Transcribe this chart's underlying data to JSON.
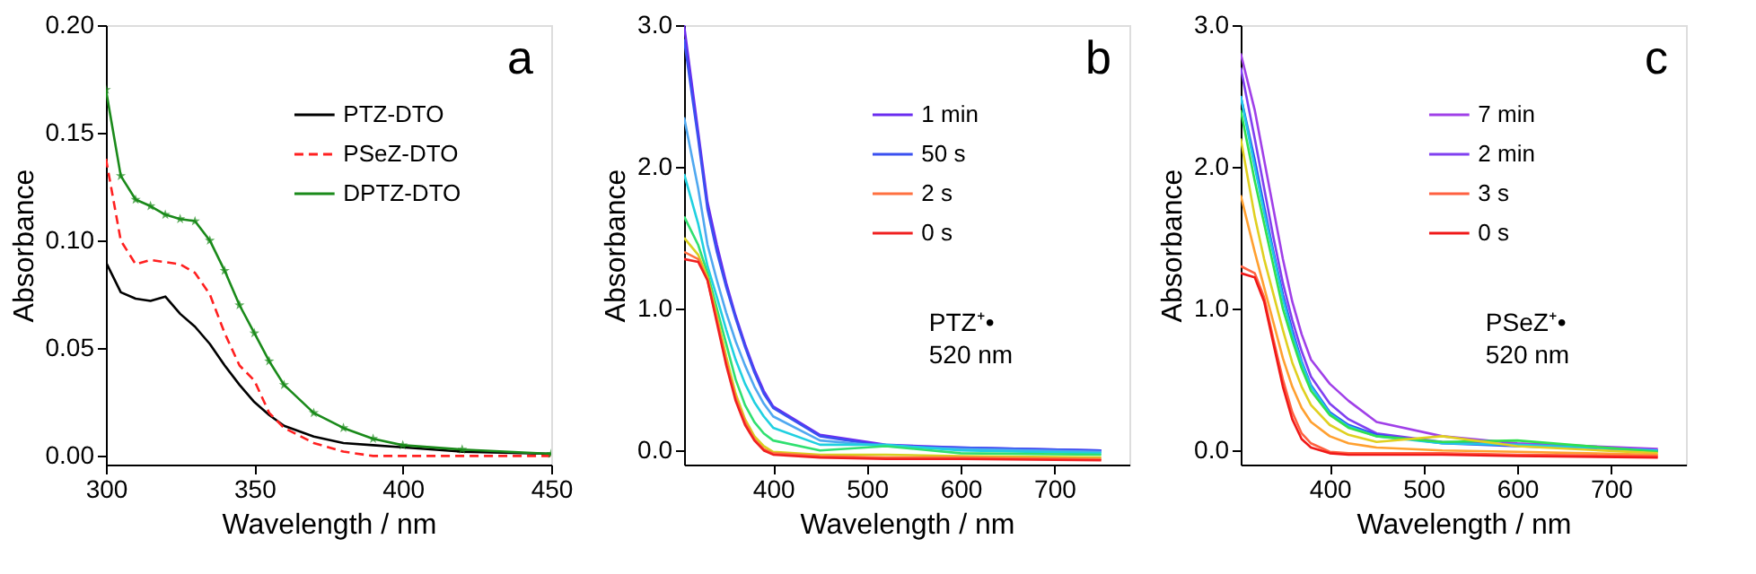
{
  "chart_data": [
    {
      "type": "line",
      "xlabel": "Wavelength / nm",
      "ylabel": "Absorbance",
      "annotations": [
        "a"
      ],
      "legend": "top right",
      "grid": false,
      "xlim": [
        300,
        450
      ],
      "xticks": [
        300,
        350,
        400,
        450
      ],
      "ylim": [
        -0.004,
        0.2
      ],
      "yticks": [
        {
          "value": 0,
          "label": "0.00"
        },
        {
          "value": 0.05,
          "label": "0.05"
        },
        {
          "value": 0.1,
          "label": "0.10"
        },
        {
          "value": 0.15,
          "label": "0.15"
        },
        {
          "value": 0.2,
          "label": "0.20"
        }
      ],
      "x": [
        300,
        305,
        310,
        315,
        320,
        325,
        330,
        335,
        340,
        345,
        350,
        355,
        360,
        370,
        380,
        390,
        400,
        420,
        450
      ],
      "series": [
        {
          "name": "PTZ-DTO",
          "color": "#000000",
          "line_style": "solid",
          "marker": "none",
          "values": [
            0.09,
            0.076,
            0.073,
            0.072,
            0.074,
            0.066,
            0.06,
            0.052,
            0.042,
            0.033,
            0.025,
            0.019,
            0.014,
            0.009,
            0.006,
            0.005,
            0.004,
            0.002,
            0.001
          ]
        },
        {
          "name": "PSeZ-DTO",
          "color": "#ff2020",
          "line_style": "dashed",
          "marker": "none",
          "values": [
            0.138,
            0.1,
            0.089,
            0.091,
            0.09,
            0.089,
            0.085,
            0.075,
            0.057,
            0.042,
            0.035,
            0.02,
            0.013,
            0.006,
            0.002,
            0.0,
            0.0,
            0.0,
            0.0
          ]
        },
        {
          "name": "DPTZ-DTO",
          "color": "#1a8a1a",
          "line_style": "solid",
          "marker": "star",
          "values": [
            0.17,
            0.13,
            0.119,
            0.116,
            0.112,
            0.11,
            0.109,
            0.1,
            0.086,
            0.07,
            0.057,
            0.044,
            0.033,
            0.02,
            0.013,
            0.008,
            0.005,
            0.003,
            0.001
          ]
        }
      ]
    },
    {
      "type": "line",
      "xlabel": "Wavelength / nm",
      "ylabel": "Absorbance",
      "annotations": [
        "b",
        "PTZ⁺•",
        "520 nm"
      ],
      "legend": "top right",
      "grid": false,
      "xlim": [
        305,
        780
      ],
      "xticks": [
        400,
        500,
        600,
        700
      ],
      "ylim": [
        -0.1,
        3.0
      ],
      "yticks": [
        {
          "value": 0,
          "label": "0.0"
        },
        {
          "value": 1,
          "label": "1.0"
        },
        {
          "value": 2,
          "label": "2.0"
        },
        {
          "value": 3,
          "label": "3.0"
        }
      ],
      "x": [
        305,
        320,
        330,
        340,
        350,
        360,
        370,
        380,
        390,
        400,
        450,
        520,
        600,
        750
      ],
      "series": [
        {
          "name": "1 min",
          "color": "#6a2cf0",
          "values": [
            3.0,
            2.25,
            1.75,
            1.45,
            1.18,
            0.95,
            0.75,
            0.57,
            0.42,
            0.31,
            0.11,
            0.04,
            0.02,
            0.0
          ]
        },
        {
          "name": "50 s",
          "color": "#3a50f0",
          "values": [
            2.9,
            2.2,
            1.7,
            1.4,
            1.15,
            0.93,
            0.73,
            0.55,
            0.4,
            0.3,
            0.1,
            0.03,
            0.02,
            0.0
          ]
        },
        {
          "color": "#50a8f0",
          "values": [
            2.35,
            1.85,
            1.45,
            1.2,
            0.97,
            0.77,
            0.6,
            0.45,
            0.33,
            0.24,
            0.07,
            0.03,
            0.01,
            -0.01
          ]
        },
        {
          "color": "#20d0e0",
          "values": [
            1.95,
            1.6,
            1.3,
            1.08,
            0.85,
            0.64,
            0.47,
            0.34,
            0.24,
            0.16,
            0.04,
            0.04,
            0.0,
            -0.02
          ]
        },
        {
          "color": "#30e070",
          "values": [
            1.65,
            1.45,
            1.25,
            1.0,
            0.75,
            0.5,
            0.32,
            0.2,
            0.12,
            0.07,
            0.0,
            0.03,
            -0.02,
            -0.03
          ]
        },
        {
          "color": "#d8d020",
          "values": [
            1.5,
            1.38,
            1.22,
            0.95,
            0.66,
            0.4,
            0.22,
            0.1,
            0.03,
            -0.01,
            -0.03,
            -0.03,
            -0.04,
            -0.05
          ]
        },
        {
          "name": "2 s",
          "color": "#ff7040",
          "values": [
            1.4,
            1.35,
            1.2,
            0.92,
            0.62,
            0.37,
            0.2,
            0.08,
            0.01,
            -0.02,
            -0.04,
            -0.05,
            -0.05,
            -0.06
          ]
        },
        {
          "name": "0 s",
          "color": "#f02020",
          "values": [
            1.35,
            1.33,
            1.2,
            0.9,
            0.6,
            0.35,
            0.18,
            0.07,
            0.0,
            -0.03,
            -0.05,
            -0.06,
            -0.06,
            -0.07
          ]
        }
      ]
    },
    {
      "type": "line",
      "xlabel": "Wavelength / nm",
      "ylabel": "Absorbance",
      "annotations": [
        "c",
        "PSeZ⁺•",
        "520 nm"
      ],
      "legend": "top right",
      "grid": false,
      "xlim": [
        305,
        780
      ],
      "xticks": [
        400,
        500,
        600,
        700
      ],
      "ylim": [
        -0.1,
        3.0
      ],
      "yticks": [
        {
          "value": 0,
          "label": "0.0"
        },
        {
          "value": 1,
          "label": "1.0"
        },
        {
          "value": 2,
          "label": "2.0"
        },
        {
          "value": 3,
          "label": "3.0"
        }
      ],
      "x": [
        305,
        320,
        330,
        340,
        350,
        360,
        370,
        380,
        400,
        420,
        450,
        520,
        600,
        750
      ],
      "series": [
        {
          "name": "7 min",
          "color": "#a040e8",
          "values": [
            2.8,
            2.4,
            2.05,
            1.7,
            1.35,
            1.05,
            0.82,
            0.64,
            0.47,
            0.35,
            0.2,
            0.1,
            0.05,
            0.01
          ]
        },
        {
          "name": "2 min",
          "color": "#8040f0",
          "values": [
            2.7,
            2.2,
            1.85,
            1.5,
            1.18,
            0.92,
            0.7,
            0.52,
            0.33,
            0.22,
            0.12,
            0.06,
            0.04,
            0.0
          ]
        },
        {
          "color": "#3050f0",
          "values": [
            2.5,
            2.05,
            1.72,
            1.4,
            1.1,
            0.85,
            0.63,
            0.46,
            0.27,
            0.18,
            0.11,
            0.05,
            0.03,
            0.0
          ]
        },
        {
          "color": "#20c8e8",
          "values": [
            2.5,
            2.0,
            1.68,
            1.38,
            1.07,
            0.82,
            0.62,
            0.45,
            0.26,
            0.17,
            0.1,
            0.05,
            0.04,
            0.0
          ]
        },
        {
          "color": "#30e050",
          "values": [
            2.4,
            1.9,
            1.6,
            1.3,
            1.0,
            0.78,
            0.58,
            0.42,
            0.25,
            0.16,
            0.1,
            0.06,
            0.07,
            -0.01
          ]
        },
        {
          "color": "#e0d020",
          "values": [
            2.2,
            1.65,
            1.35,
            1.1,
            0.85,
            0.62,
            0.45,
            0.32,
            0.18,
            0.11,
            0.06,
            0.1,
            0.03,
            -0.02
          ]
        },
        {
          "color": "#ffa030",
          "values": [
            1.8,
            1.4,
            1.15,
            0.9,
            0.65,
            0.45,
            0.3,
            0.2,
            0.1,
            0.05,
            0.02,
            0.0,
            -0.01,
            -0.03
          ]
        },
        {
          "name": "3 s",
          "color": "#ff6040",
          "values": [
            1.3,
            1.25,
            1.08,
            0.78,
            0.5,
            0.27,
            0.12,
            0.05,
            -0.01,
            -0.02,
            -0.02,
            -0.02,
            -0.03,
            -0.04
          ]
        },
        {
          "name": "0 s",
          "color": "#f01818",
          "values": [
            1.25,
            1.22,
            1.05,
            0.75,
            0.45,
            0.22,
            0.08,
            0.02,
            -0.02,
            -0.03,
            -0.03,
            -0.03,
            -0.04,
            -0.05
          ]
        }
      ]
    }
  ]
}
